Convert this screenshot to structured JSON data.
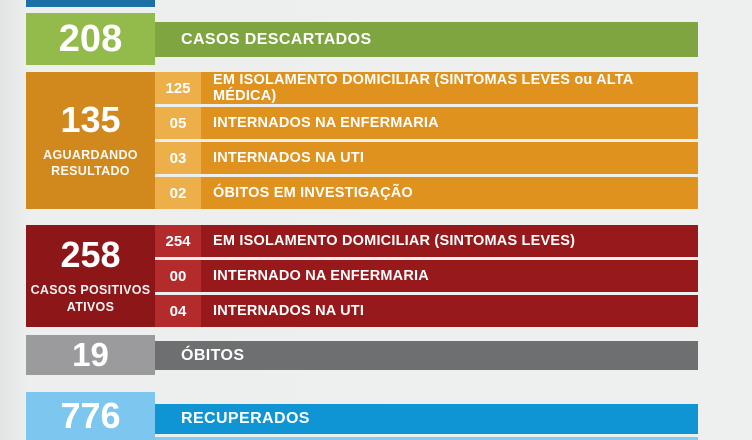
{
  "page": {
    "background": "#eef0f0"
  },
  "top_partial_bar": {
    "color": "#1d6fa8"
  },
  "sections": {
    "descartados": {
      "value": "208",
      "label": "CASOS DESCARTADOS",
      "box_color": "#93bb4b",
      "bar_color": "#7fa540"
    },
    "aguardando": {
      "value": "135",
      "label_line1": "AGUARDANDO",
      "label_line2": "RESULTADO",
      "box_color": "#d1891e",
      "cell_color": "#edaf49",
      "bar_color": "#df921d",
      "rows": [
        {
          "num": "125",
          "label": "EM ISOLAMENTO DOMICILIAR (SINTOMAS LEVES ou ALTA MÉDICA)"
        },
        {
          "num": "05",
          "label": "INTERNADOS NA ENFERMARIA"
        },
        {
          "num": "03",
          "label": "INTERNADOS NA UTI"
        },
        {
          "num": "02",
          "label": "ÓBITOS EM INVESTIGAÇÃO"
        }
      ]
    },
    "positivos": {
      "value": "258",
      "label_line1": "CASOS POSITIVOS",
      "label_line2": "ATIVOS",
      "box_color": "#8c1618",
      "cell_color": "#b42b2c",
      "bar_color": "#97191c",
      "rows": [
        {
          "num": "254",
          "label": "EM ISOLAMENTO DOMICILIAR (SINTOMAS LEVES)"
        },
        {
          "num": "00",
          "label": "INTERNADO NA ENFERMARIA"
        },
        {
          "num": "04",
          "label": "INTERNADOS NA UTI"
        }
      ]
    },
    "obitos": {
      "value": "19",
      "label": "ÓBITOS",
      "box_color": "#9b9b9d",
      "bar_color": "#6e6f71"
    },
    "recuperados": {
      "value": "776",
      "label": "RECUPERADOS",
      "box_color": "#7cc6ef",
      "bar_color": "#0f95d4",
      "strip_color": "#84cbf0"
    }
  },
  "chart_data": {
    "type": "table",
    "title": "Boletim de casos (COVID-19)",
    "rows": [
      {
        "value": 208,
        "label": "CASOS DESCARTADOS",
        "color": "#93bb4b"
      },
      {
        "value": 135,
        "label": "AGUARDANDO RESULTADO",
        "color": "#d1891e",
        "breakdown": [
          {
            "value": 125,
            "label": "EM ISOLAMENTO DOMICILIAR (SINTOMAS LEVES ou ALTA MÉDICA)"
          },
          {
            "value": 5,
            "label": "INTERNADOS NA ENFERMARIA"
          },
          {
            "value": 3,
            "label": "INTERNADOS NA UTI"
          },
          {
            "value": 2,
            "label": "ÓBITOS EM INVESTIGAÇÃO"
          }
        ]
      },
      {
        "value": 258,
        "label": "CASOS POSITIVOS ATIVOS",
        "color": "#8c1618",
        "breakdown": [
          {
            "value": 254,
            "label": "EM ISOLAMENTO DOMICILIAR (SINTOMAS LEVES)"
          },
          {
            "value": 0,
            "label": "INTERNADO NA ENFERMARIA"
          },
          {
            "value": 4,
            "label": "INTERNADOS NA UTI"
          }
        ]
      },
      {
        "value": 19,
        "label": "ÓBITOS",
        "color": "#9b9b9d"
      },
      {
        "value": 776,
        "label": "RECUPERADOS",
        "color": "#7cc6ef"
      }
    ]
  }
}
